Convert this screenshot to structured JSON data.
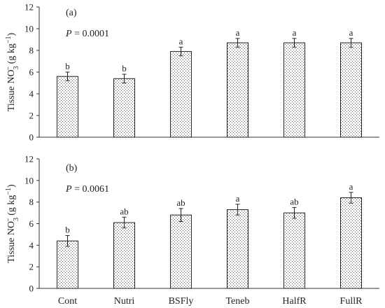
{
  "chart_data": [
    {
      "type": "bar",
      "panel_label": "(a)",
      "p_label": "P",
      "p_value": " = 0.0001",
      "ylabel_main": "Tissue NO",
      "ylabel_sub": "3",
      "ylabel_sup": "−",
      "ylabel_unit": " (g kg",
      "ylabel_unit_sup": "−1",
      "ylabel_close": ")",
      "categories": [
        "Cont",
        "Nutri",
        "BSFly",
        "Teneb",
        "HalfR",
        "FullR"
      ],
      "values": [
        5.6,
        5.4,
        7.9,
        8.7,
        8.7,
        8.7
      ],
      "errors": [
        0.4,
        0.4,
        0.4,
        0.4,
        0.4,
        0.4
      ],
      "letters": [
        "b",
        "b",
        "a",
        "a",
        "a",
        "a"
      ],
      "ylim": [
        0,
        12
      ],
      "yticks": [
        "0",
        "2",
        "4",
        "6",
        "8",
        "10",
        "12"
      ]
    },
    {
      "type": "bar",
      "panel_label": "(b)",
      "p_label": "P",
      "p_value": " = 0.0061",
      "ylabel_main": "Tissue NO",
      "ylabel_sub": "3",
      "ylabel_sup": "−",
      "ylabel_unit": " (g kg",
      "ylabel_unit_sup": "−1",
      "ylabel_close": ")",
      "categories": [
        "Cont",
        "Nutri",
        "BSFly",
        "Teneb",
        "HalfR",
        "FullR"
      ],
      "values": [
        4.4,
        6.1,
        6.8,
        7.3,
        7.0,
        8.4
      ],
      "errors": [
        0.5,
        0.5,
        0.6,
        0.5,
        0.5,
        0.5
      ],
      "letters": [
        "b",
        "ab",
        "ab",
        "a",
        "ab",
        "a"
      ],
      "ylim": [
        0,
        12
      ],
      "yticks": [
        "0",
        "2",
        "4",
        "6",
        "8",
        "10",
        "12"
      ]
    }
  ]
}
